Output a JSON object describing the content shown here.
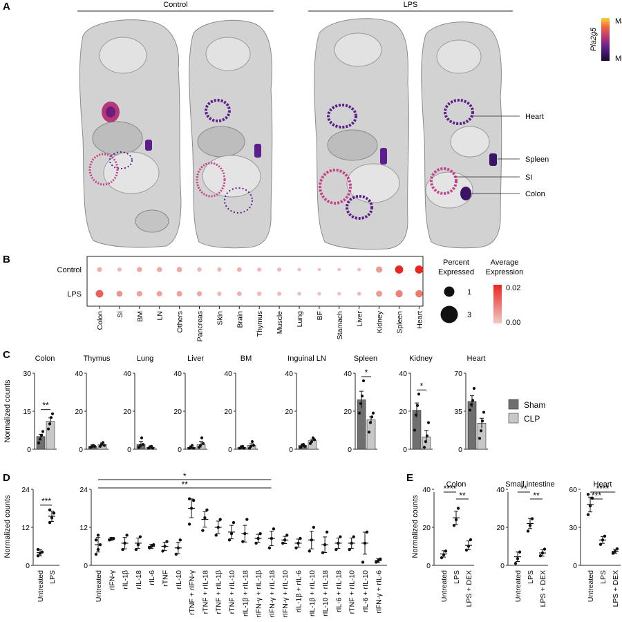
{
  "panels": {
    "A": {
      "letter": "A",
      "groups": [
        "Control",
        "LPS"
      ],
      "colorbar": {
        "gene": "Pla2g5",
        "max_label": "Max",
        "min_label": "Min",
        "colors": [
          "#1a0a2e",
          "#5b1e8c",
          "#b63679",
          "#f06a3e",
          "#f9d13a"
        ]
      },
      "organ_labels": [
        "Heart",
        "Spleen",
        "SI",
        "Colon"
      ]
    },
    "B": {
      "letter": "B"
    },
    "C": {
      "letter": "C"
    },
    "D": {
      "letter": "D"
    },
    "E": {
      "letter": "E"
    }
  },
  "chart_data": [
    {
      "id": "B",
      "type": "dotplot",
      "rows": [
        "Control",
        "LPS"
      ],
      "columns": [
        "Colon",
        "SI",
        "BM",
        "LN",
        "Others",
        "Pancreas",
        "Skin",
        "Brain",
        "Thymus",
        "Muscle",
        "Lung",
        "BF",
        "Stamach",
        "Liver",
        "Kidney",
        "Spleen",
        "Heart"
      ],
      "percent_expressed": [
        [
          1.1,
          0.8,
          1.2,
          1.2,
          1.3,
          0.9,
          0.9,
          1.0,
          0.8,
          0.8,
          0.6,
          0.5,
          0.5,
          0.6,
          1.8,
          3.0,
          3.0
        ],
        [
          2.6,
          1.6,
          1.4,
          1.4,
          1.4,
          1.2,
          0.9,
          1.0,
          0.9,
          0.8,
          0.7,
          0.6,
          0.6,
          0.7,
          1.7,
          2.3,
          2.4
        ]
      ],
      "average_expression": [
        [
          0.003,
          0.002,
          0.004,
          0.004,
          0.004,
          0.002,
          0.002,
          0.003,
          0.002,
          0.002,
          0.001,
          0.001,
          0.001,
          0.001,
          0.006,
          0.02,
          0.02
        ],
        [
          0.013,
          0.007,
          0.005,
          0.005,
          0.005,
          0.004,
          0.002,
          0.003,
          0.002,
          0.002,
          0.001,
          0.001,
          0.001,
          0.002,
          0.006,
          0.009,
          0.01
        ]
      ],
      "size_legend": {
        "title": [
          "Percent",
          "Expressed"
        ],
        "entries": [
          1,
          3
        ]
      },
      "color_legend": {
        "title": [
          "Average",
          "Expression"
        ],
        "max": "0.02",
        "min": "0.00",
        "low_color": "#f1c9c6",
        "high_color": "#e8281e"
      }
    },
    {
      "id": "C",
      "type": "bar",
      "ylabel": "Normalized counts",
      "legend": [
        {
          "name": "Sham",
          "color": "#6f6f6f"
        },
        {
          "name": "CLP",
          "color": "#c8c8c8"
        }
      ],
      "subplots": [
        {
          "title": "Colon",
          "ylim": [
            0,
            30
          ],
          "ticks": [
            "0",
            "15",
            "30"
          ],
          "sham": 5,
          "clp": 11,
          "sham_pts": [
            2.5,
            4,
            5.5,
            7
          ],
          "clp_pts": [
            8,
            10,
            12.5,
            14
          ],
          "sig": "**"
        },
        {
          "title": "Thymus",
          "ylim": [
            0,
            40
          ],
          "ticks": [
            "0",
            "20",
            "40"
          ],
          "sham": 1.5,
          "clp": 2.5,
          "sham_pts": [
            1,
            1.5,
            2,
            1.5
          ],
          "clp_pts": [
            1.5,
            2.5,
            3.5,
            2
          ],
          "sig": ""
        },
        {
          "title": "Lung",
          "ylim": [
            0,
            40
          ],
          "ticks": [
            "0",
            "20",
            "40"
          ],
          "sham": 2.5,
          "clp": 1,
          "sham_pts": [
            1,
            2,
            6,
            2.5
          ],
          "clp_pts": [
            0.5,
            1,
            1.5,
            0.5
          ],
          "sig": ""
        },
        {
          "title": "Liver",
          "ylim": [
            0,
            40
          ],
          "ticks": [
            "0",
            "20",
            "40"
          ],
          "sham": 1,
          "clp": 2.5,
          "sham_pts": [
            0.5,
            1,
            2,
            0.5
          ],
          "clp_pts": [
            1,
            2,
            6,
            3
          ],
          "sig": ""
        },
        {
          "title": "BM",
          "ylim": [
            0,
            40
          ],
          "ticks": [
            "0",
            "20",
            "40"
          ],
          "sham": 1,
          "clp": 2,
          "sham_pts": [
            0.5,
            1,
            1.5,
            0.5
          ],
          "clp_pts": [
            0.5,
            1.5,
            4,
            2
          ],
          "sig": ""
        },
        {
          "title": "Inguinal LN",
          "ylim": [
            0,
            40
          ],
          "ticks": [
            "0",
            "20",
            "40"
          ],
          "sham": 2,
          "clp": 4.5,
          "sham_pts": [
            1,
            2,
            2.5,
            1.5
          ],
          "clp_pts": [
            3,
            4,
            6,
            5
          ],
          "sig": ""
        },
        {
          "title": "Spleen",
          "ylim": [
            0,
            40
          ],
          "ticks": [
            "0",
            "20",
            "40"
          ],
          "sham": 26,
          "clp": 15.5,
          "sham_pts": [
            19,
            24,
            28,
            36
          ],
          "clp_pts": [
            9,
            14,
            17,
            19
          ],
          "sig": "*"
        },
        {
          "title": "Kidney",
          "ylim": [
            0,
            40
          ],
          "ticks": [
            "0",
            "20",
            "40"
          ],
          "sham": 20.5,
          "clp": 6.5,
          "sham_pts": [
            10,
            18,
            23,
            29
          ],
          "clp_pts": [
            1,
            4,
            7,
            14
          ],
          "sig": "*"
        },
        {
          "title": "Heart",
          "ylim": [
            0,
            70
          ],
          "ticks": [
            "0",
            "35",
            "70"
          ],
          "sham": 44,
          "clp": 24,
          "sham_pts": [
            36,
            41,
            45,
            56
          ],
          "clp_pts": [
            10,
            17,
            26,
            34
          ],
          "sig": ""
        }
      ]
    },
    {
      "id": "D",
      "type": "scatter",
      "ylabel": "Normalized counts",
      "left": {
        "ylim": [
          0,
          24
        ],
        "ticks": [
          "0",
          "12",
          "24"
        ],
        "sig": "***",
        "groups": [
          {
            "label": "Untreated",
            "mean": 4,
            "pts": [
              3,
              3.8,
              4.2,
              5
            ]
          },
          {
            "label": "LPS",
            "mean": 15.5,
            "pts": [
              13.5,
              15,
              16.5,
              17.5
            ]
          }
        ]
      },
      "right": {
        "ylim": [
          0,
          24
        ],
        "ticks": [
          "0",
          "12",
          "24"
        ],
        "brackets": [
          {
            "label": "*",
            "to": 5
          },
          {
            "label": "**",
            "to": 5
          }
        ],
        "groups": [
          {
            "label": "Untreated",
            "mean": 6.5,
            "pts": [
              3.5,
              5,
              6.5,
              8,
              9.5
            ]
          },
          {
            "label": "rIFN-γ",
            "mean": 8.3,
            "pts": [
              8,
              8.5,
              8.5
            ]
          },
          {
            "label": "rIL-1β",
            "mean": 7,
            "pts": [
              5,
              7,
              9.5
            ]
          },
          {
            "label": "rIL-18",
            "mean": 7,
            "pts": [
              5,
              6.5,
              9
            ]
          },
          {
            "label": "rIL-6",
            "mean": 6,
            "pts": [
              5.5,
              6,
              6.5
            ]
          },
          {
            "label": "rTNF",
            "mean": 6,
            "pts": [
              4.5,
              6,
              7.5
            ]
          },
          {
            "label": "rIL-10",
            "mean": 5.5,
            "pts": [
              3.5,
              5.5,
              8
            ]
          },
          {
            "label": "rTNF + rIFN-γ",
            "mean": 18,
            "pts": [
              13,
              18,
              20.5,
              21
            ]
          },
          {
            "label": "rTNF + rIL-18",
            "mean": 14.5,
            "pts": [
              11,
              15,
              17.5
            ]
          },
          {
            "label": "rTNF + rIL-1β",
            "mean": 12,
            "pts": [
              9.5,
              12,
              14.5
            ]
          },
          {
            "label": "rTNF + rIL-10",
            "mean": 10.5,
            "pts": [
              8,
              10,
              13.5
            ]
          },
          {
            "label": "rIL-1β + rIL-18",
            "mean": 10,
            "pts": [
              7.5,
              10,
              14.5
            ]
          },
          {
            "label": "rIFN-γ + rIL-1β",
            "mean": 8.5,
            "pts": [
              7,
              8.5,
              10
            ]
          },
          {
            "label": "rIFN-γ + rIL-18",
            "mean": 8.5,
            "pts": [
              5.5,
              8.5,
              11.5
            ]
          },
          {
            "label": "rIFN-γ + rIL-10",
            "mean": 8,
            "pts": [
              7,
              8,
              9.5
            ]
          },
          {
            "label": "rIL-1β + rIL-6",
            "mean": 7,
            "pts": [
              5.5,
              7,
              8.5
            ]
          },
          {
            "label": "rIL-1β + rIL-10",
            "mean": 8,
            "pts": [
              4.5,
              8,
              12
            ]
          },
          {
            "label": "rIL-10 + rIL-18",
            "mean": 6.5,
            "pts": [
              4,
              6.5,
              10.5
            ]
          },
          {
            "label": "rIL-6 + rIL-18",
            "mean": 7,
            "pts": [
              5,
              7,
              9
            ]
          },
          {
            "label": "rTNF + rIL-10",
            "mean": 7,
            "pts": [
              5,
              7,
              9
            ]
          },
          {
            "label": "rIL-6 + rIL-10",
            "mean": 7,
            "pts": [
              1,
              7,
              10.5
            ]
          },
          {
            "label": "rIFN-γ + rIL-6",
            "mean": 1.5,
            "pts": [
              1,
              1.5,
              2
            ]
          }
        ]
      }
    },
    {
      "id": "E",
      "type": "scatter",
      "ylabel": "Normalized counts",
      "xlabels": [
        "Untreated",
        "LPS",
        "LPS + DEX"
      ],
      "subplots": [
        {
          "title": "Colon",
          "ylim": [
            0,
            40
          ],
          "ticks": [
            "0",
            "20",
            "40"
          ],
          "groups": [
            {
              "mean": 6,
              "pts": [
                4,
                5.5,
                7.5
              ]
            },
            {
              "mean": 25,
              "pts": [
                21,
                24,
                30
              ]
            },
            {
              "mean": 10.5,
              "pts": [
                8,
                10,
                13.5
              ]
            }
          ],
          "brackets": [
            {
              "a": 0,
              "b": 1,
              "label": "****"
            },
            {
              "a": 1,
              "b": 2,
              "label": "**"
            }
          ]
        },
        {
          "title": "Small intestine",
          "ylim": [
            0,
            40
          ],
          "ticks": [
            "0",
            "20",
            "40"
          ],
          "groups": [
            {
              "mean": 4.5,
              "pts": [
                1,
                3.5,
                7
              ]
            },
            {
              "mean": 22,
              "pts": [
                18,
                21,
                24.5
              ]
            },
            {
              "mean": 6.5,
              "pts": [
                5,
                6.5,
                8.5
              ]
            }
          ],
          "brackets": [
            {
              "a": 0,
              "b": 1,
              "label": "**"
            },
            {
              "a": 1,
              "b": 2,
              "label": "**"
            }
          ]
        },
        {
          "title": "Heart",
          "ylim": [
            0,
            60
          ],
          "ticks": [
            "0",
            "30",
            "60"
          ],
          "groups": [
            {
              "mean": 48,
              "pts": [
                40,
                47,
                53,
                56
              ]
            },
            {
              "mean": 20,
              "pts": [
                16.5,
                20,
                23
              ]
            },
            {
              "mean": 11,
              "pts": [
                9.5,
                11,
                13
              ]
            }
          ],
          "brackets": [
            {
              "a": 0,
              "b": 2,
              "label": "****"
            },
            {
              "a": 0,
              "b": 1,
              "label": "***"
            }
          ]
        }
      ]
    }
  ]
}
